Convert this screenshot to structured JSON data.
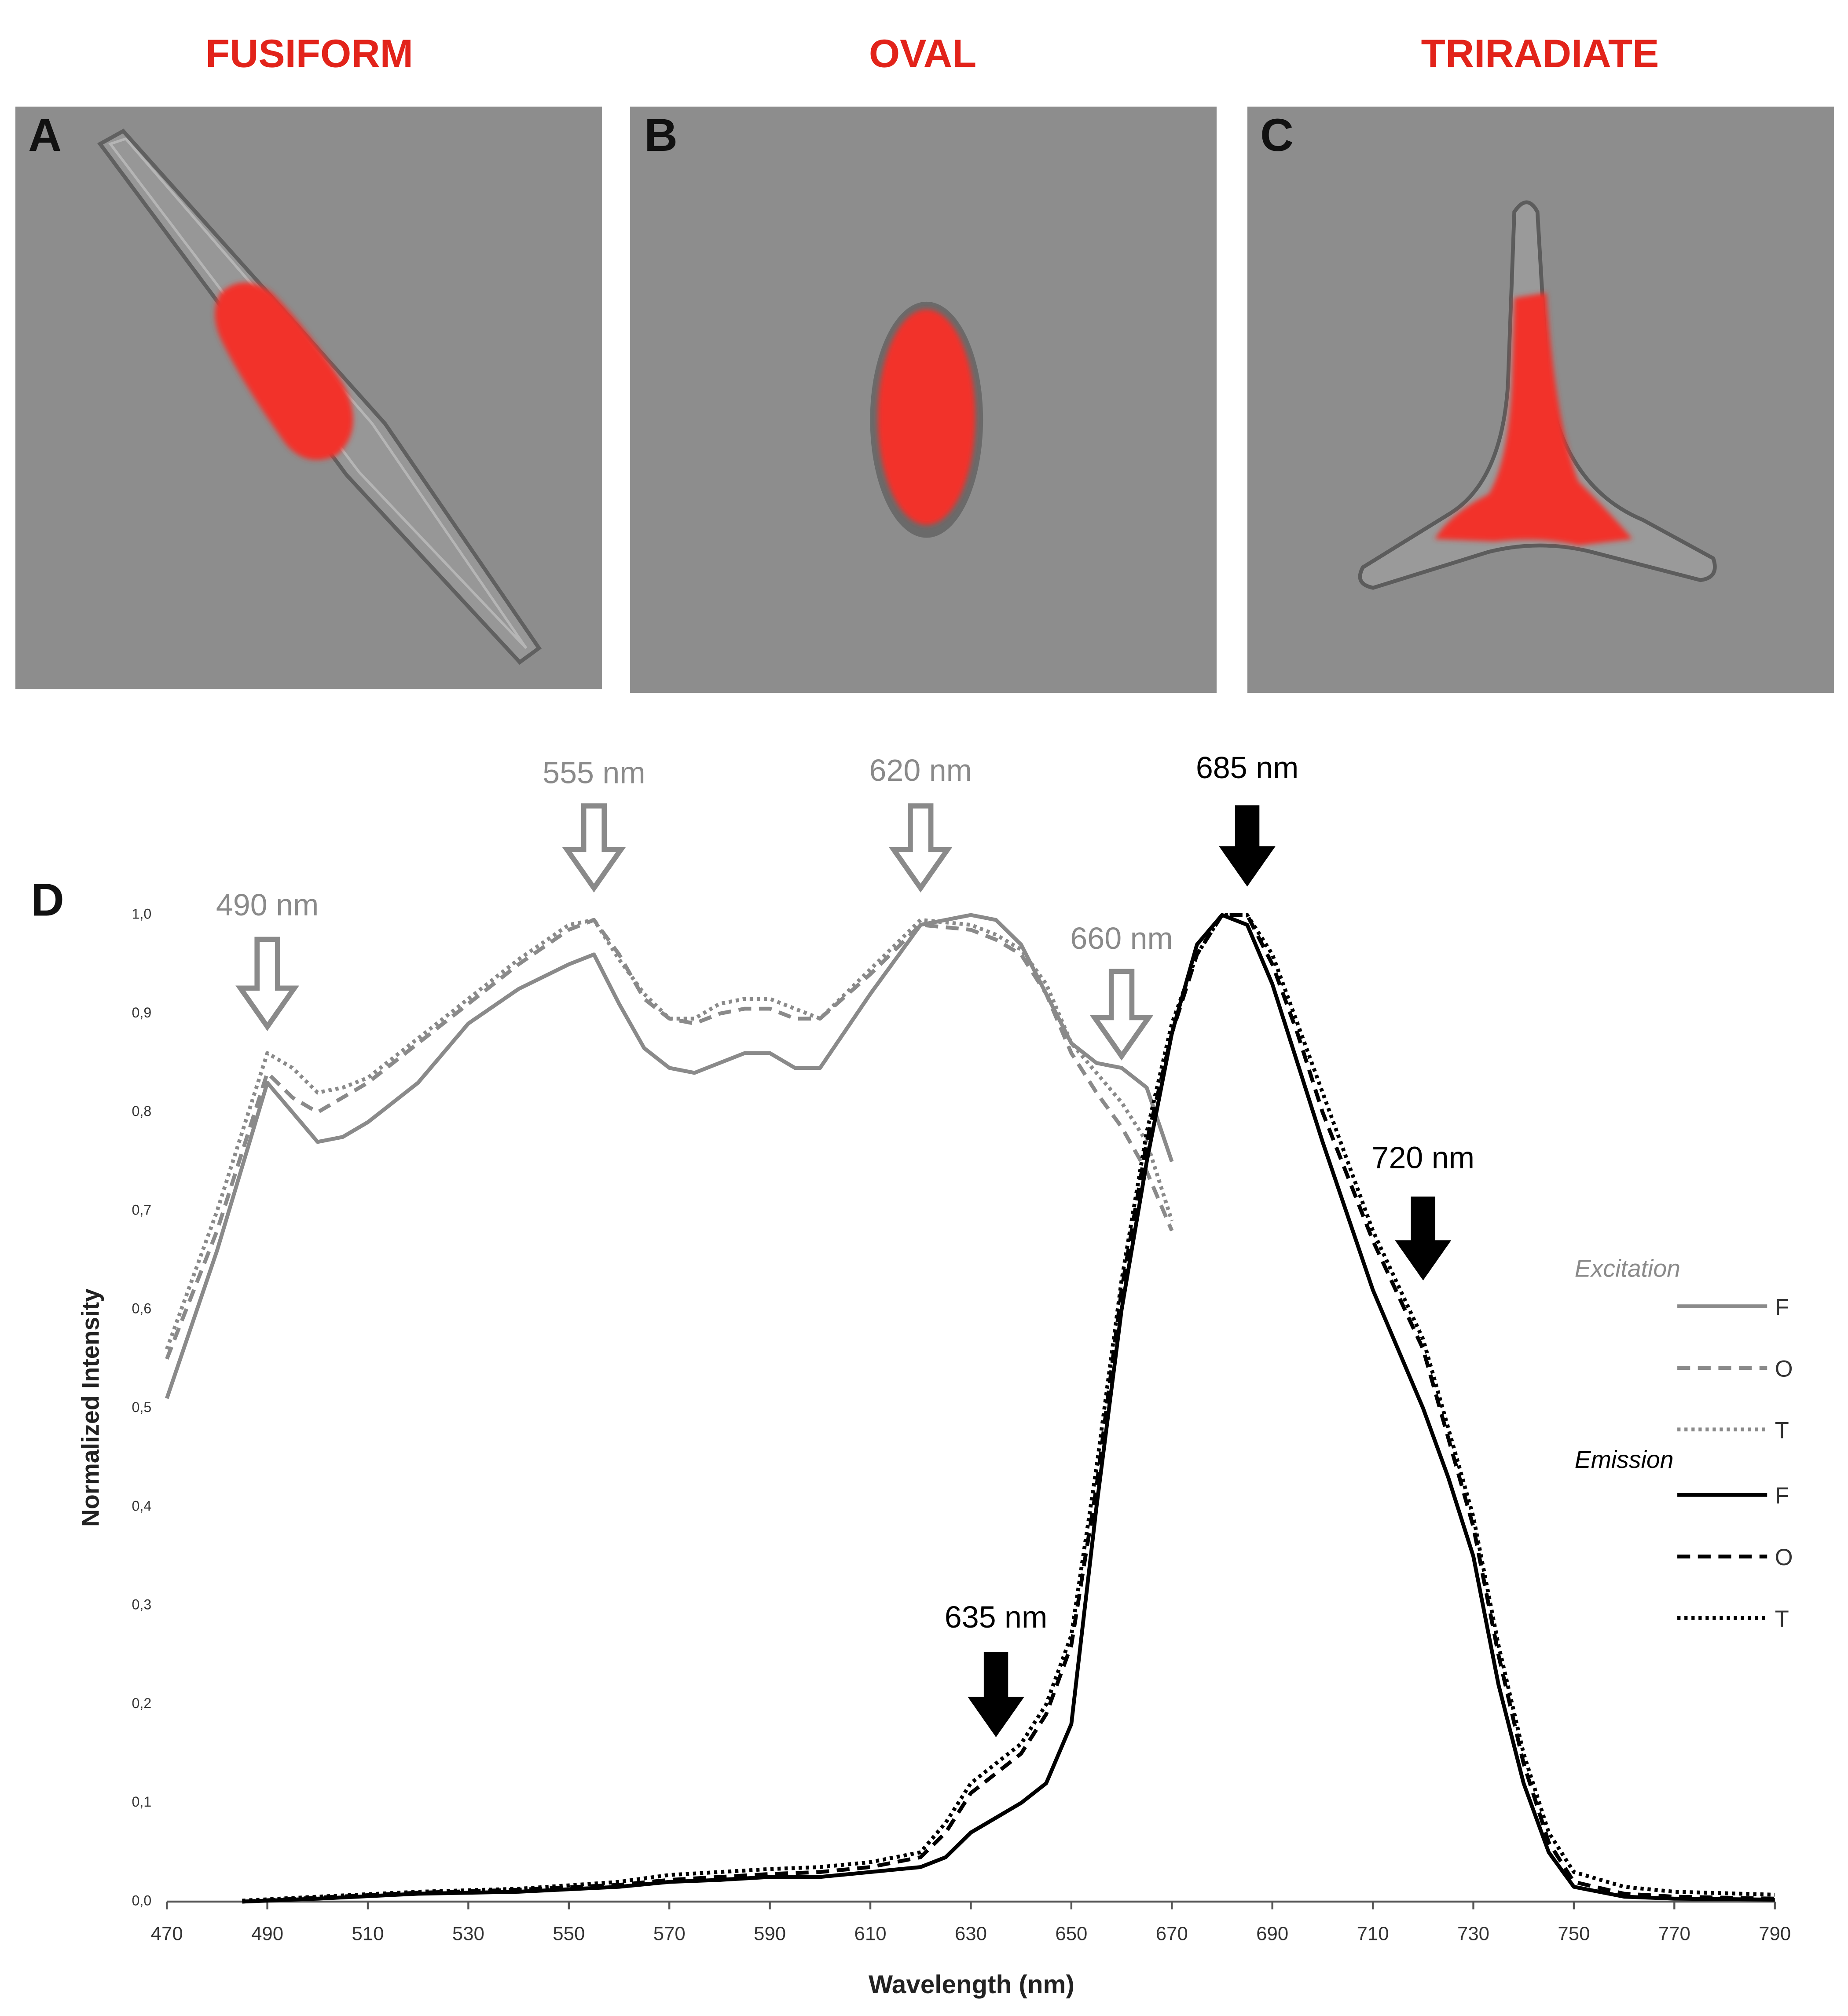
{
  "panels": [
    {
      "title": "FUSIFORM",
      "letter": "A"
    },
    {
      "title": "OVAL",
      "letter": "B"
    },
    {
      "title": "TRIRADIATE",
      "letter": "C"
    }
  ],
  "chart_letter": "D",
  "chart_data": {
    "type": "line",
    "x_label": "Wavelength (nm)",
    "y_label": "Normalized Intensity",
    "xlim": [
      470,
      790
    ],
    "xticks": [
      470,
      490,
      510,
      530,
      550,
      570,
      590,
      610,
      630,
      650,
      670,
      690,
      710,
      730,
      750,
      770,
      790
    ],
    "ylim": [
      0,
      1
    ],
    "yticks": [
      {
        "value": 0,
        "label": "0,0"
      },
      {
        "value": 0.1,
        "label": "0,1"
      },
      {
        "value": 0.2,
        "label": "0,2"
      },
      {
        "value": 0.3,
        "label": "0,3"
      },
      {
        "value": 0.4,
        "label": "0,4"
      },
      {
        "value": 0.5,
        "label": "0,5"
      },
      {
        "value": 0.6,
        "label": "0,6"
      },
      {
        "value": 0.7,
        "label": "0,7"
      },
      {
        "value": 0.8,
        "label": "0,8"
      },
      {
        "value": 0.9,
        "label": "0,9"
      },
      {
        "value": 1,
        "label": "1,0"
      }
    ],
    "grid": false,
    "series_groups": [
      {
        "name": "Excitation",
        "color": "#8a8a8a",
        "series": [
          {
            "name": "F",
            "style": "solid",
            "x": [
              470,
              480,
              490,
              495,
              500,
              505,
              510,
              520,
              530,
              540,
              550,
              555,
              560,
              565,
              570,
              575,
              580,
              585,
              590,
              595,
              600,
              610,
              620,
              630,
              635,
              640,
              645,
              650,
              655,
              660,
              665,
              670
            ],
            "values": [
              0.51,
              0.66,
              0.83,
              0.8,
              0.77,
              0.775,
              0.79,
              0.83,
              0.89,
              0.925,
              0.95,
              0.96,
              0.91,
              0.865,
              0.845,
              0.84,
              0.85,
              0.86,
              0.86,
              0.845,
              0.845,
              0.92,
              0.99,
              1.0,
              0.995,
              0.97,
              0.92,
              0.87,
              0.85,
              0.845,
              0.825,
              0.75
            ]
          },
          {
            "name": "O",
            "style": "dashed",
            "x": [
              470,
              480,
              490,
              495,
              500,
              505,
              510,
              520,
              530,
              540,
              550,
              555,
              560,
              565,
              570,
              575,
              580,
              585,
              590,
              595,
              600,
              610,
              620,
              630,
              635,
              640,
              645,
              650,
              655,
              660,
              665,
              670
            ],
            "values": [
              0.55,
              0.68,
              0.84,
              0.815,
              0.8,
              0.815,
              0.83,
              0.87,
              0.91,
              0.95,
              0.985,
              0.995,
              0.96,
              0.915,
              0.895,
              0.89,
              0.9,
              0.905,
              0.905,
              0.895,
              0.895,
              0.94,
              0.99,
              0.985,
              0.975,
              0.96,
              0.92,
              0.86,
              0.82,
              0.785,
              0.74,
              0.68
            ]
          },
          {
            "name": "T",
            "style": "dotted",
            "x": [
              470,
              480,
              490,
              495,
              500,
              505,
              510,
              520,
              530,
              540,
              550,
              555,
              560,
              565,
              570,
              575,
              580,
              585,
              590,
              595,
              600,
              610,
              620,
              630,
              635,
              640,
              645,
              650,
              655,
              660,
              665,
              670
            ],
            "values": [
              0.56,
              0.7,
              0.86,
              0.845,
              0.82,
              0.825,
              0.835,
              0.875,
              0.915,
              0.955,
              0.99,
              0.995,
              0.955,
              0.92,
              0.895,
              0.895,
              0.91,
              0.915,
              0.915,
              0.905,
              0.895,
              0.945,
              0.995,
              0.99,
              0.98,
              0.965,
              0.93,
              0.87,
              0.84,
              0.81,
              0.77,
              0.69
            ]
          }
        ]
      },
      {
        "name": "Emission",
        "color": "#000000",
        "series": [
          {
            "name": "F",
            "style": "solid",
            "x": [
              485,
              500,
              520,
              540,
              560,
              570,
              580,
              590,
              600,
              610,
              620,
              625,
              630,
              640,
              645,
              650,
              655,
              660,
              665,
              670,
              675,
              680,
              685,
              690,
              695,
              700,
              710,
              720,
              725,
              730,
              735,
              740,
              745,
              750,
              760,
              770,
              790
            ],
            "values": [
              0,
              0.003,
              0.008,
              0.01,
              0.015,
              0.02,
              0.022,
              0.025,
              0.025,
              0.03,
              0.035,
              0.045,
              0.07,
              0.1,
              0.12,
              0.18,
              0.4,
              0.6,
              0.75,
              0.88,
              0.97,
              1.0,
              0.99,
              0.93,
              0.85,
              0.77,
              0.62,
              0.5,
              0.43,
              0.35,
              0.22,
              0.12,
              0.05,
              0.015,
              0.005,
              0.003,
              0.002
            ]
          },
          {
            "name": "O",
            "style": "dashed",
            "x": [
              485,
              500,
              520,
              540,
              560,
              570,
              580,
              590,
              600,
              610,
              620,
              625,
              630,
              640,
              645,
              650,
              655,
              660,
              665,
              670,
              675,
              680,
              685,
              690,
              695,
              700,
              710,
              720,
              725,
              730,
              735,
              740,
              745,
              750,
              760,
              770,
              790
            ],
            "values": [
              0,
              0.004,
              0.009,
              0.012,
              0.017,
              0.022,
              0.025,
              0.028,
              0.03,
              0.035,
              0.045,
              0.07,
              0.11,
              0.15,
              0.19,
              0.26,
              0.42,
              0.62,
              0.77,
              0.88,
              0.96,
              1.0,
              1.0,
              0.95,
              0.88,
              0.8,
              0.67,
              0.56,
              0.47,
              0.38,
              0.25,
              0.14,
              0.06,
              0.02,
              0.008,
              0.005,
              0.003
            ]
          },
          {
            "name": "T",
            "style": "dotted",
            "x": [
              485,
              500,
              520,
              540,
              560,
              570,
              580,
              590,
              600,
              610,
              620,
              625,
              630,
              640,
              645,
              650,
              655,
              660,
              665,
              670,
              675,
              680,
              685,
              690,
              695,
              700,
              710,
              720,
              725,
              730,
              735,
              740,
              745,
              750,
              760,
              770,
              790
            ],
            "values": [
              0.001,
              0.005,
              0.01,
              0.013,
              0.02,
              0.027,
              0.03,
              0.033,
              0.035,
              0.04,
              0.05,
              0.08,
              0.12,
              0.16,
              0.2,
              0.27,
              0.44,
              0.63,
              0.78,
              0.89,
              0.96,
              1.0,
              1.0,
              0.96,
              0.89,
              0.82,
              0.68,
              0.57,
              0.48,
              0.39,
              0.26,
              0.15,
              0.07,
              0.03,
              0.015,
              0.01,
              0.007
            ]
          }
        ]
      }
    ],
    "annotations": [
      {
        "text": "490 nm",
        "x": 490,
        "color": "#8a8a8a",
        "arrow": "hollow"
      },
      {
        "text": "555 nm",
        "x": 555,
        "color": "#8a8a8a",
        "arrow": "hollow"
      },
      {
        "text": "620 nm",
        "x": 620,
        "color": "#8a8a8a",
        "arrow": "hollow"
      },
      {
        "text": "660 nm",
        "x": 660,
        "color": "#8a8a8a",
        "arrow": "hollow"
      },
      {
        "text": "685 nm",
        "x": 685,
        "color": "#000000",
        "arrow": "filled"
      },
      {
        "text": "720 nm",
        "x": 720,
        "color": "#000000",
        "arrow": "filled"
      },
      {
        "text": "635 nm",
        "x": 635,
        "color": "#000000",
        "arrow": "filled"
      }
    ]
  }
}
